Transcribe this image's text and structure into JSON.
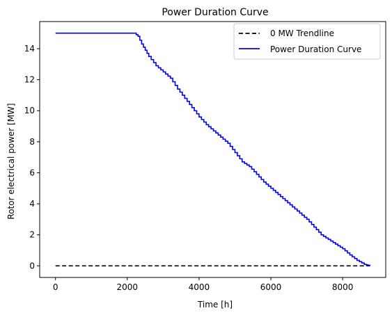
{
  "chart_data": {
    "type": "line",
    "title": "Power Duration Curve",
    "xlabel": "Time [h]",
    "ylabel": "Rotor electrical power [MW]",
    "xlim": [
      -440,
      9200
    ],
    "ylim": [
      -0.75,
      15.75
    ],
    "xticks": [
      0,
      2000,
      4000,
      6000,
      8000
    ],
    "yticks": [
      0,
      2,
      4,
      6,
      8,
      10,
      12,
      14
    ],
    "grid": false,
    "legend_position": "top-right",
    "colors": {
      "trendline": "#000000",
      "curve": "#0000ff"
    },
    "series": [
      {
        "name": "0 MW Trendline",
        "style": "dashed",
        "x": [
          0,
          8760
        ],
        "y": [
          0,
          0
        ]
      },
      {
        "name": "Power Duration Curve",
        "style": "solid",
        "x": [
          0,
          500,
          1000,
          1500,
          2000,
          2200,
          2300,
          2400,
          2500,
          2600,
          2800,
          3000,
          3200,
          3400,
          3600,
          3800,
          4000,
          4200,
          4400,
          4600,
          4800,
          5000,
          5200,
          5400,
          5600,
          5800,
          6000,
          6200,
          6400,
          6600,
          6800,
          7000,
          7200,
          7400,
          7600,
          7800,
          8000,
          8200,
          8400,
          8600,
          8760
        ],
        "y": [
          15,
          15,
          15,
          15,
          15,
          15,
          14.8,
          14.3,
          13.9,
          13.5,
          12.9,
          12.5,
          12.1,
          11.4,
          10.8,
          10.2,
          9.6,
          9.1,
          8.7,
          8.3,
          7.9,
          7.3,
          6.7,
          6.4,
          5.9,
          5.4,
          5.0,
          4.6,
          4.2,
          3.8,
          3.4,
          3.0,
          2.5,
          2.0,
          1.7,
          1.4,
          1.1,
          0.7,
          0.35,
          0.1,
          0
        ]
      }
    ]
  }
}
